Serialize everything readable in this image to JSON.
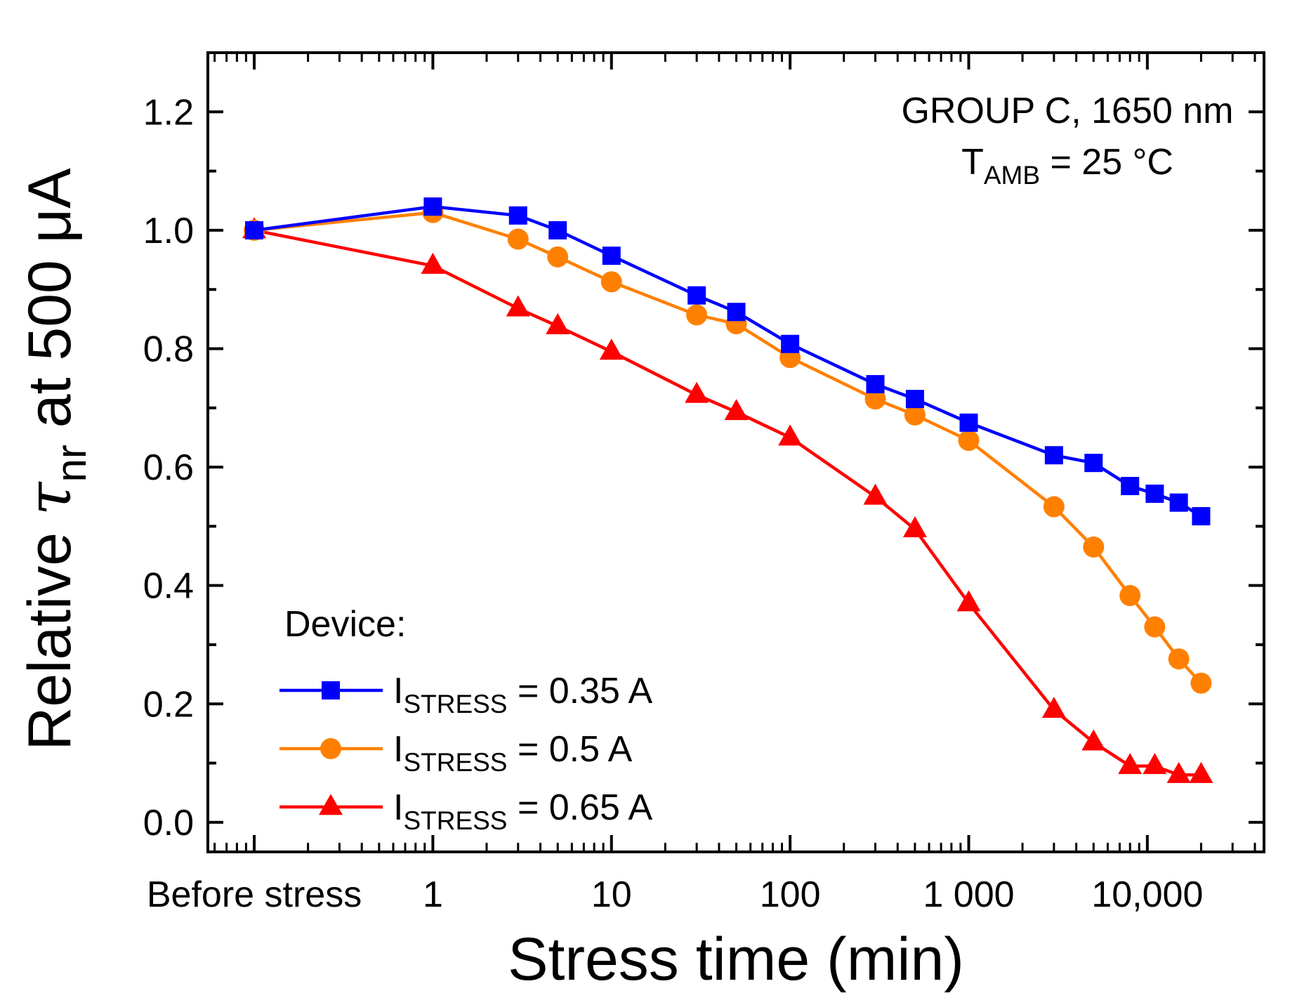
{
  "chart_data": {
    "type": "line",
    "title": "",
    "annotation": {
      "line1": "GROUP C, 1650 nm",
      "line2_main": "T",
      "line2_sub": "AMB",
      "line2_rest": " = 25 °C"
    },
    "xlabel": "Stress time (min)",
    "ylabel": {
      "prefix": "Relative ",
      "symbol": "τ",
      "sub": "nr",
      "suffix": " at 500 μA"
    },
    "x_scale": "log",
    "xlim": [
      0.055,
      45000
    ],
    "ylim": [
      -0.05,
      1.3
    ],
    "x_ticks": [
      {
        "value": 0.1,
        "label": "Before stress"
      },
      {
        "value": 1,
        "label": "1"
      },
      {
        "value": 10,
        "label": "10"
      },
      {
        "value": 100,
        "label": "100"
      },
      {
        "value": 1000,
        "label": "1 000"
      },
      {
        "value": 10000,
        "label": "10,000"
      }
    ],
    "y_ticks": [
      {
        "value": 0.0,
        "label": "0.0"
      },
      {
        "value": 0.2,
        "label": "0.2"
      },
      {
        "value": 0.4,
        "label": "0.4"
      },
      {
        "value": 0.6,
        "label": "0.6"
      },
      {
        "value": 0.8,
        "label": "0.8"
      },
      {
        "value": 1.0,
        "label": "1.0"
      },
      {
        "value": 1.2,
        "label": "1.2"
      }
    ],
    "legend": {
      "title": "Device:",
      "position": "bottom-left"
    },
    "series": [
      {
        "name": "I_STRESS = 0.35 A",
        "label_main": "I",
        "label_sub": "STRESS",
        "label_rest": " = 0.35 A",
        "color": "#0000ff",
        "marker": "square",
        "x": [
          0.1,
          1,
          3,
          5,
          10,
          30,
          50,
          100,
          300,
          500,
          1000,
          3000,
          5000,
          8000,
          11000,
          15000,
          20000
        ],
        "values": [
          1.0,
          1.04,
          1.025,
          1.0,
          0.957,
          0.89,
          0.862,
          0.808,
          0.74,
          0.715,
          0.675,
          0.62,
          0.607,
          0.568,
          0.555,
          0.54,
          0.517
        ]
      },
      {
        "name": "I_STRESS = 0.5 A",
        "label_main": "I",
        "label_sub": "STRESS",
        "label_rest": " = 0.5 A",
        "color": "#ff8000",
        "marker": "circle",
        "x": [
          0.1,
          1,
          3,
          5,
          10,
          30,
          50,
          100,
          300,
          500,
          1000,
          3000,
          5000,
          8000,
          11000,
          15000,
          20000
        ],
        "values": [
          1.0,
          1.03,
          0.985,
          0.955,
          0.913,
          0.857,
          0.842,
          0.785,
          0.715,
          0.688,
          0.645,
          0.533,
          0.465,
          0.383,
          0.33,
          0.276,
          0.235
        ]
      },
      {
        "name": "I_STRESS = 0.65 A",
        "label_main": "I",
        "label_sub": "STRESS",
        "label_rest": " = 0.65 A",
        "color": "#ff0000",
        "marker": "triangle",
        "x": [
          0.1,
          1,
          3,
          5,
          10,
          30,
          50,
          100,
          300,
          500,
          1000,
          3000,
          5000,
          8000,
          11000,
          15000,
          20000
        ],
        "values": [
          1.0,
          0.94,
          0.868,
          0.838,
          0.795,
          0.722,
          0.693,
          0.65,
          0.55,
          0.495,
          0.37,
          0.19,
          0.135,
          0.095,
          0.095,
          0.08,
          0.08
        ]
      }
    ]
  }
}
